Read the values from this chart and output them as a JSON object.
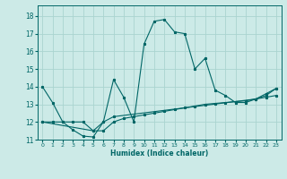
{
  "xlabel": "Humidex (Indice chaleur)",
  "background_color": "#cceae7",
  "grid_color": "#aad4d0",
  "line_color": "#006666",
  "xlim": [
    -0.5,
    23.5
  ],
  "ylim": [
    11,
    18.6
  ],
  "yticks": [
    11,
    12,
    13,
    14,
    15,
    16,
    17,
    18
  ],
  "xticks": [
    0,
    1,
    2,
    3,
    4,
    5,
    6,
    7,
    8,
    9,
    10,
    11,
    12,
    13,
    14,
    15,
    16,
    17,
    18,
    19,
    20,
    21,
    22,
    23
  ],
  "series1_x": [
    0,
    1,
    2,
    3,
    4,
    5,
    6,
    7,
    8,
    9,
    10,
    11,
    12,
    13,
    14,
    15,
    16,
    17,
    18,
    19,
    20,
    21,
    22,
    23
  ],
  "series1_y": [
    14.0,
    13.1,
    12.0,
    11.55,
    11.2,
    11.15,
    12.0,
    14.4,
    13.4,
    12.0,
    16.4,
    17.7,
    17.8,
    17.1,
    17.0,
    15.0,
    15.6,
    13.8,
    13.5,
    13.1,
    13.1,
    13.3,
    13.6,
    13.9
  ],
  "series2_x": [
    0,
    1,
    2,
    3,
    4,
    5,
    6,
    7,
    8,
    9,
    10,
    11,
    12,
    13,
    14,
    15,
    16,
    17,
    18,
    19,
    20,
    21,
    22,
    23
  ],
  "series2_y": [
    12.0,
    12.0,
    12.0,
    12.0,
    12.0,
    11.5,
    11.5,
    12.0,
    12.2,
    12.3,
    12.4,
    12.5,
    12.6,
    12.7,
    12.8,
    12.9,
    13.0,
    13.05,
    13.1,
    13.15,
    13.2,
    13.3,
    13.4,
    13.5
  ],
  "series3_x": [
    0,
    5,
    6,
    7,
    21,
    22,
    23
  ],
  "series3_y": [
    12.0,
    11.5,
    12.0,
    12.3,
    13.3,
    13.5,
    13.9
  ]
}
